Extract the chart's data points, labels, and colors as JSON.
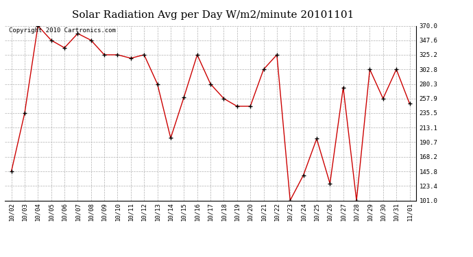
{
  "title": "Solar Radiation Avg per Day W/m2/minute 20101101",
  "copyright": "Copyright 2010 Cartronics.com",
  "dates": [
    "10/02",
    "10/03",
    "10/04",
    "10/05",
    "10/06",
    "10/07",
    "10/08",
    "10/09",
    "10/10",
    "10/11",
    "10/12",
    "10/13",
    "10/14",
    "10/15",
    "10/16",
    "10/17",
    "10/18",
    "10/19",
    "10/20",
    "10/21",
    "10/22",
    "10/23",
    "10/24",
    "10/25",
    "10/26",
    "10/27",
    "10/28",
    "10/29",
    "10/30",
    "10/31",
    "11/01"
  ],
  "values": [
    145.8,
    235.5,
    370.0,
    347.6,
    336.0,
    358.0,
    347.6,
    325.2,
    325.2,
    320.0,
    325.2,
    280.3,
    197.0,
    260.0,
    325.2,
    280.3,
    257.9,
    246.0,
    246.0,
    302.8,
    325.2,
    101.0,
    140.0,
    196.0,
    127.0,
    275.0,
    101.0,
    302.8,
    257.9,
    302.8,
    250.0
  ],
  "ylim_min": 101.0,
  "ylim_max": 370.0,
  "ytick_values": [
    101.0,
    123.4,
    145.8,
    168.2,
    190.7,
    213.1,
    235.5,
    257.9,
    280.3,
    302.8,
    325.2,
    347.6,
    370.0
  ],
  "ytick_labels": [
    "101.0",
    "123.4",
    "145.8",
    "168.2",
    "190.7",
    "213.1",
    "235.5",
    "257.9",
    "280.3",
    "302.8",
    "325.2",
    "347.6",
    "370.0"
  ],
  "line_color": "#cc0000",
  "marker": "+",
  "background_color": "#ffffff",
  "grid_color": "#b0b0b0",
  "title_fontsize": 11,
  "copyright_fontsize": 6.5,
  "tick_fontsize": 6.5
}
